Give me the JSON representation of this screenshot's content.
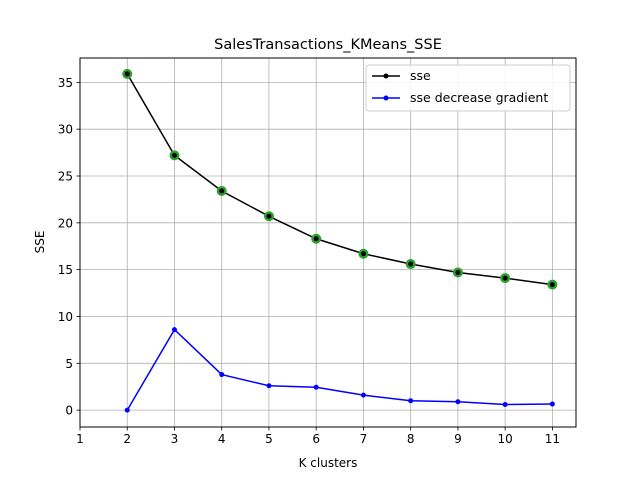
{
  "chart_data": {
    "type": "line",
    "title": "SalesTransactions_KMeans_SSE",
    "xlabel": "K clusters",
    "ylabel": "SSE",
    "xlim": [
      1,
      11.5
    ],
    "ylim": [
      -1.8,
      37.6
    ],
    "x_ticks": [
      1,
      2,
      3,
      4,
      5,
      6,
      7,
      8,
      9,
      10,
      11
    ],
    "y_ticks": [
      0,
      5,
      10,
      15,
      20,
      25,
      30,
      35
    ],
    "grid": true,
    "legend_position": "upper-right",
    "x": [
      2,
      3,
      4,
      5,
      6,
      7,
      8,
      9,
      10,
      11
    ],
    "series": [
      {
        "name": "sse",
        "color": "#000000",
        "highlight_color": "#2ca02c",
        "values": [
          35.9,
          27.2,
          23.4,
          20.7,
          18.3,
          16.7,
          15.6,
          14.7,
          14.1,
          13.4
        ]
      },
      {
        "name": "sse decrease gradient",
        "color": "#0000ff",
        "values": [
          0.0,
          8.6,
          3.8,
          2.6,
          2.45,
          1.6,
          1.0,
          0.9,
          0.6,
          0.65
        ]
      }
    ]
  }
}
